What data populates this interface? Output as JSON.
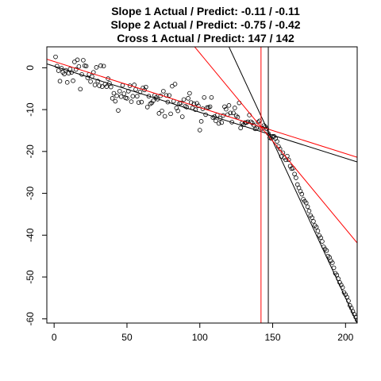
{
  "chart_data": {
    "type": "scatter",
    "title_lines": [
      "Slope 1 Actual / Predict: -0.11 / -0.11",
      "Slope 2 Actual / Predict: -0.75 / -0.42",
      "Cross 1 Actual / Predict: 147 / 142"
    ],
    "xlim": [
      -5,
      208
    ],
    "ylim": [
      -61,
      5
    ],
    "x_ticks": [
      0,
      50,
      100,
      150,
      200
    ],
    "y_ticks": [
      0,
      -10,
      -20,
      -30,
      -40,
      -50,
      -60
    ],
    "x_tick_labels": [
      "0",
      "50",
      "100",
      "150",
      "200"
    ],
    "y_tick_labels": [
      "0",
      "-10",
      "-20",
      "-30",
      "-40",
      "-50",
      "-60"
    ],
    "point_x_start": 1,
    "point_x_step": 1,
    "points_y": [
      2.6,
      0.4,
      -0.7,
      -3.2,
      -0.1,
      -1.1,
      -1.5,
      -0.6,
      -3.5,
      -1.3,
      -0.3,
      -1.1,
      -3.1,
      1.4,
      -0.4,
      1.9,
      0.3,
      -5.1,
      -1.6,
      1.8,
      0.5,
      0.4,
      -2.4,
      -1.6,
      -3.3,
      -2.1,
      -1.1,
      -4.1,
      0.1,
      -3.2,
      -4.3,
      0.5,
      -4.5,
      0.4,
      -3.9,
      -4.5,
      -2.6,
      -3.7,
      -4.6,
      -7.3,
      -6.1,
      -8.0,
      -6.7,
      -10.2,
      -5.6,
      -6.9,
      -4.2,
      -6.2,
      -7.2,
      -7.3,
      -5.6,
      -4.3,
      -8.1,
      -6.8,
      -4.1,
      -5.2,
      -6.8,
      -8.3,
      -5.8,
      -8.2,
      -4.8,
      -5.3,
      -4.6,
      -9.4,
      -6.8,
      -8.6,
      -8.4,
      -7.9,
      -6.6,
      -7.1,
      -7.5,
      -10.9,
      -6.7,
      -10.3,
      -5.6,
      -11.6,
      -6.6,
      -8.2,
      -6.6,
      -11.0,
      -4.4,
      -8.0,
      -3.9,
      -9.6,
      -10.3,
      -8.5,
      -8.4,
      -11.7,
      -7.6,
      -9.2,
      -9.4,
      -7.3,
      -6.1,
      -8.3,
      -9.6,
      -8.6,
      -10.0,
      -8.5,
      -9.1,
      -14.9,
      -12.8,
      -9.8,
      -7.1,
      -11.2,
      -9.5,
      -9.5,
      -9.3,
      -7.1,
      -11.9,
      -11.7,
      -12.7,
      -11.3,
      -13.3,
      -12.1,
      -13.1,
      -11.4,
      -9.3,
      -9.9,
      -11.2,
      -9.0,
      -10.8,
      -13.0,
      -10.8,
      -9.6,
      -11.5,
      -11.8,
      -8.4,
      -14.4,
      -13.2,
      -13.6,
      -13.1,
      -13.1,
      -12.9,
      -11.3,
      -12.9,
      -13.2,
      -13.7,
      -14.6,
      -14.4,
      -13.0,
      -12.7,
      -14.5,
      -14.5,
      -13.8,
      -14.1,
      -14.6,
      -15.7,
      -16.7,
      -16.9,
      -16.4,
      -16.4,
      -16.9,
      -17.6,
      -18.8,
      -19.4,
      -21.2,
      -20.3,
      -21.5,
      -22.0,
      -21.1,
      -22.0,
      -23.5,
      -24.1,
      -24.0,
      -25.4,
      -26.3,
      -27.9,
      -28.7,
      -29.5,
      -30.2,
      -31.4,
      -31.9,
      -32.3,
      -33.2,
      -34.2,
      -35.3,
      -35.8,
      -36.7,
      -37.7,
      -38.1,
      -39.0,
      -40.1,
      -40.6,
      -41.5,
      -42.8,
      -43.3,
      -43.7,
      -45.0,
      -45.3,
      -46.1,
      -46.6,
      -47.8,
      -49.1,
      -49.5,
      -50.4,
      -51.3,
      -51.9,
      -52.5,
      -53.7,
      -54.2,
      -54.8,
      -55.7,
      -56.8,
      -57.4,
      -58.2,
      -58.9,
      -59.6,
      -60.3
    ],
    "lines": [
      {
        "color": "#000000",
        "slope": -0.11,
        "intercept": 0.37,
        "kind": "actual-segment-1"
      },
      {
        "color": "#000000",
        "slope": -0.75,
        "intercept": 95.0,
        "kind": "actual-segment-2"
      },
      {
        "color": "#ff0000",
        "slope": -0.11,
        "intercept": 1.5,
        "kind": "predicted-segment-1"
      },
      {
        "color": "#ff0000",
        "slope": -0.42,
        "intercept": 45.5,
        "kind": "predicted-segment-2"
      }
    ],
    "vlines": [
      {
        "x": 147,
        "color": "#000000",
        "kind": "actual-cross"
      },
      {
        "x": 142,
        "color": "#ff0000",
        "kind": "predicted-cross"
      }
    ],
    "grid": false,
    "legend": "none"
  }
}
